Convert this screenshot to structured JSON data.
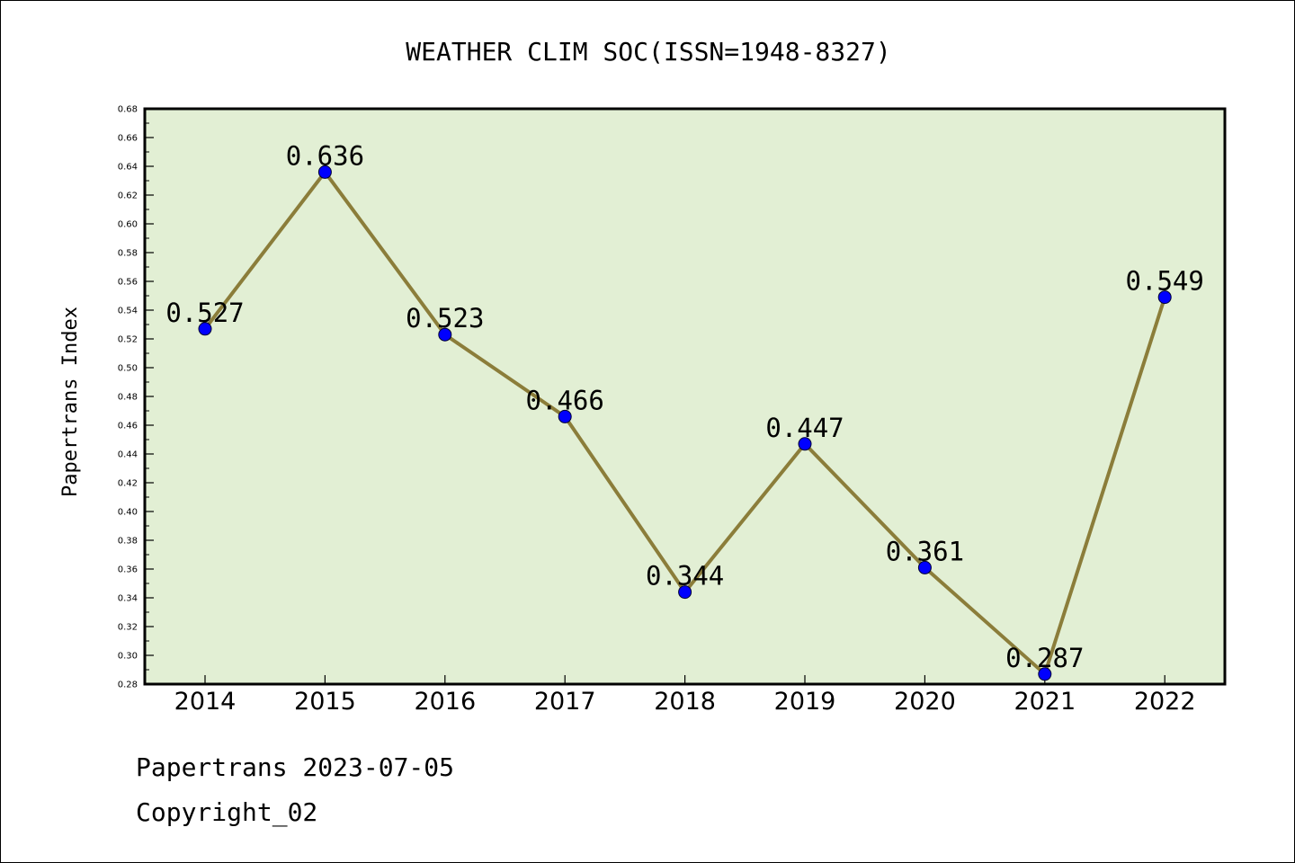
{
  "chart_data": {
    "type": "line",
    "title": "WEATHER CLIM SOC(ISSN=1948-8327)",
    "xlabel": "",
    "ylabel": "Papertrans Index",
    "categories": [
      "2014",
      "2015",
      "2016",
      "2017",
      "2018",
      "2019",
      "2020",
      "2021",
      "2022"
    ],
    "values": [
      0.527,
      0.636,
      0.523,
      0.466,
      0.344,
      0.447,
      0.361,
      0.287,
      0.549
    ],
    "data_labels": [
      "0.527",
      "0.636",
      "0.523",
      "0.466",
      "0.344",
      "0.447",
      "0.361",
      "0.287",
      "0.549"
    ],
    "ylim": [
      0.28,
      0.68
    ],
    "y_ticks": [
      "0.28",
      "0.30",
      "0.32",
      "0.34",
      "0.36",
      "0.38",
      "0.40",
      "0.42",
      "0.44",
      "0.46",
      "0.48",
      "0.50",
      "0.52",
      "0.54",
      "0.56",
      "0.58",
      "0.60",
      "0.62",
      "0.64",
      "0.66",
      "0.68"
    ],
    "grid": false,
    "legend": "none",
    "colors": {
      "line": "#8b7d3a",
      "marker": "#0000ff",
      "plot_background": "#e2efd4",
      "axes": "#000000"
    }
  },
  "footer": {
    "line1": "Papertrans 2023-07-05",
    "line2": "Copyright_02"
  }
}
